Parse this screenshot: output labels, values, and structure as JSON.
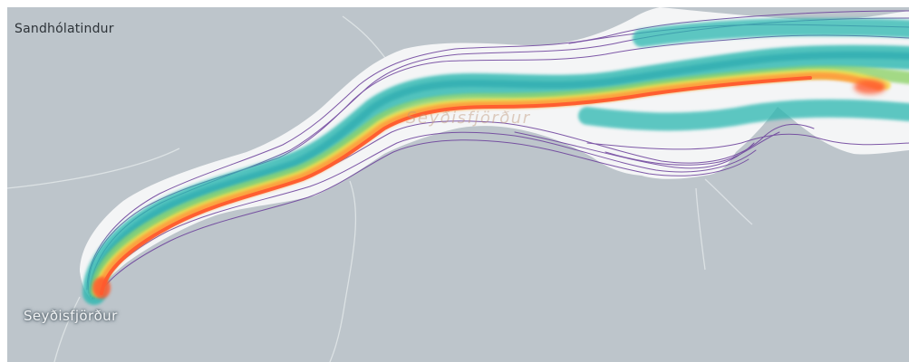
{
  "map": {
    "labels": {
      "peak": "Sandhólatindur",
      "town": "Seyðisfjörður",
      "fjord": "Seyðisfjörður"
    },
    "colors": {
      "land": "#bdc5cb",
      "fjord_water": "#f4f5f6",
      "road": "#dfe4e7",
      "track_low_density": "#6a3d9a",
      "track_mid_density": "#2ab7b0",
      "track_high_density": "#ff6b3d",
      "track_peak_density": "#ff5a2e"
    },
    "legend_ramp": [
      "#6a3d9a",
      "#3f7fb5",
      "#2ab7b0",
      "#8fd36a",
      "#f7e04b",
      "#ff9a3c",
      "#ff5a2e"
    ]
  }
}
